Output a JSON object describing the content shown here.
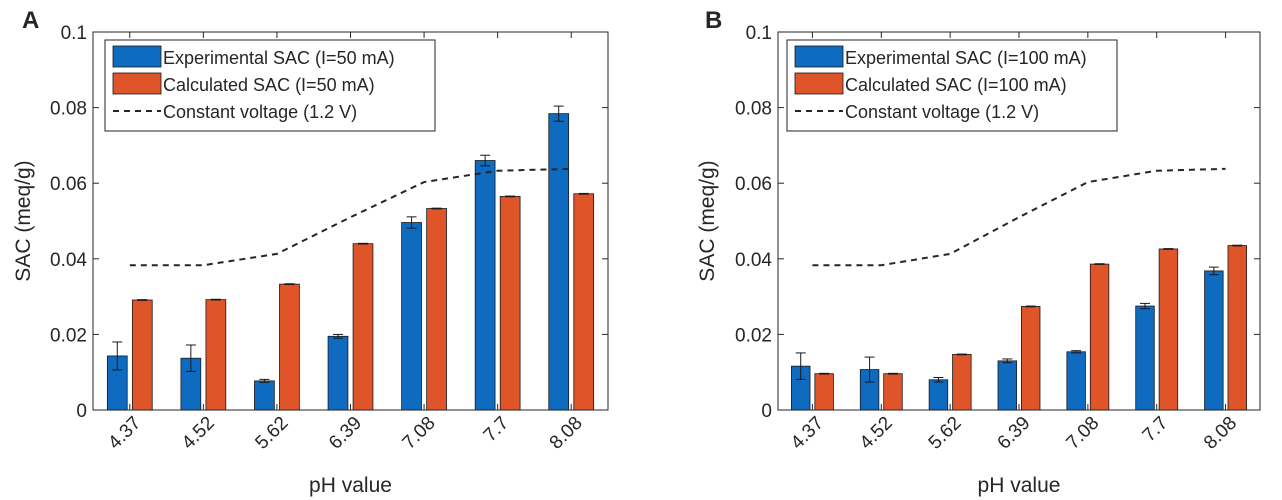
{
  "colors": {
    "experimental": "#0F6BBF",
    "calculated": "#E0542A",
    "constant": "#262626",
    "axis": "#262626"
  },
  "chart_data": [
    {
      "panel_label": "A",
      "type": "bar",
      "xlabel": "pH value",
      "ylabel": "SAC (meq/g)",
      "ylim": [
        0,
        0.1
      ],
      "yticks": [
        "0",
        "0.02",
        "0.04",
        "0.06",
        "0.08",
        "0.1"
      ],
      "categories": [
        "4.37",
        "4.52",
        "5.62",
        "6.39",
        "7.08",
        "7.7",
        "8.08"
      ],
      "legend_position": "top-left",
      "series": [
        {
          "name": "Experimental SAC (I=50 mA)",
          "kind": "bar",
          "values": [
            0.0143,
            0.0137,
            0.0077,
            0.0195,
            0.0496,
            0.066,
            0.0784
          ],
          "errors": [
            0.0037,
            0.0035,
            0.0004,
            0.0005,
            0.0015,
            0.0014,
            0.002
          ]
        },
        {
          "name": "Calculated SAC (I=50 mA)",
          "kind": "bar",
          "values": [
            0.0291,
            0.0292,
            0.0333,
            0.044,
            0.0533,
            0.0565,
            0.0572
          ],
          "errors": [
            0.0001,
            0.0001,
            0.0001,
            0.0001,
            0.0001,
            0.0001,
            0.0001
          ]
        },
        {
          "name": "Constant voltage (1.2 V)",
          "kind": "dashed-line",
          "values": [
            0.0383,
            0.0383,
            0.0413,
            0.051,
            0.0603,
            0.0633,
            0.0638
          ]
        }
      ]
    },
    {
      "panel_label": "B",
      "type": "bar",
      "xlabel": "pH value",
      "ylabel": "SAC (meq/g)",
      "ylim": [
        0,
        0.1
      ],
      "yticks": [
        "0",
        "0.02",
        "0.04",
        "0.06",
        "0.08",
        "0.1"
      ],
      "categories": [
        "4.37",
        "4.52",
        "5.62",
        "6.39",
        "7.08",
        "7.7",
        "8.08"
      ],
      "legend_position": "top-left",
      "series": [
        {
          "name": "Experimental SAC (I=100 mA)",
          "kind": "bar",
          "values": [
            0.0116,
            0.0107,
            0.008,
            0.013,
            0.0154,
            0.0275,
            0.0368
          ],
          "errors": [
            0.0035,
            0.0033,
            0.0006,
            0.0005,
            0.0003,
            0.0007,
            0.001
          ]
        },
        {
          "name": "Calculated SAC (I=100 mA)",
          "kind": "bar",
          "values": [
            0.0096,
            0.0096,
            0.0147,
            0.0274,
            0.0386,
            0.0426,
            0.0435
          ],
          "errors": [
            0.0001,
            0.0001,
            0.0001,
            0.0001,
            0.0001,
            0.0001,
            0.0001
          ]
        },
        {
          "name": "Constant voltage (1.2 V)",
          "kind": "dashed-line",
          "values": [
            0.0383,
            0.0383,
            0.0413,
            0.051,
            0.0603,
            0.0633,
            0.0638
          ]
        }
      ]
    }
  ]
}
